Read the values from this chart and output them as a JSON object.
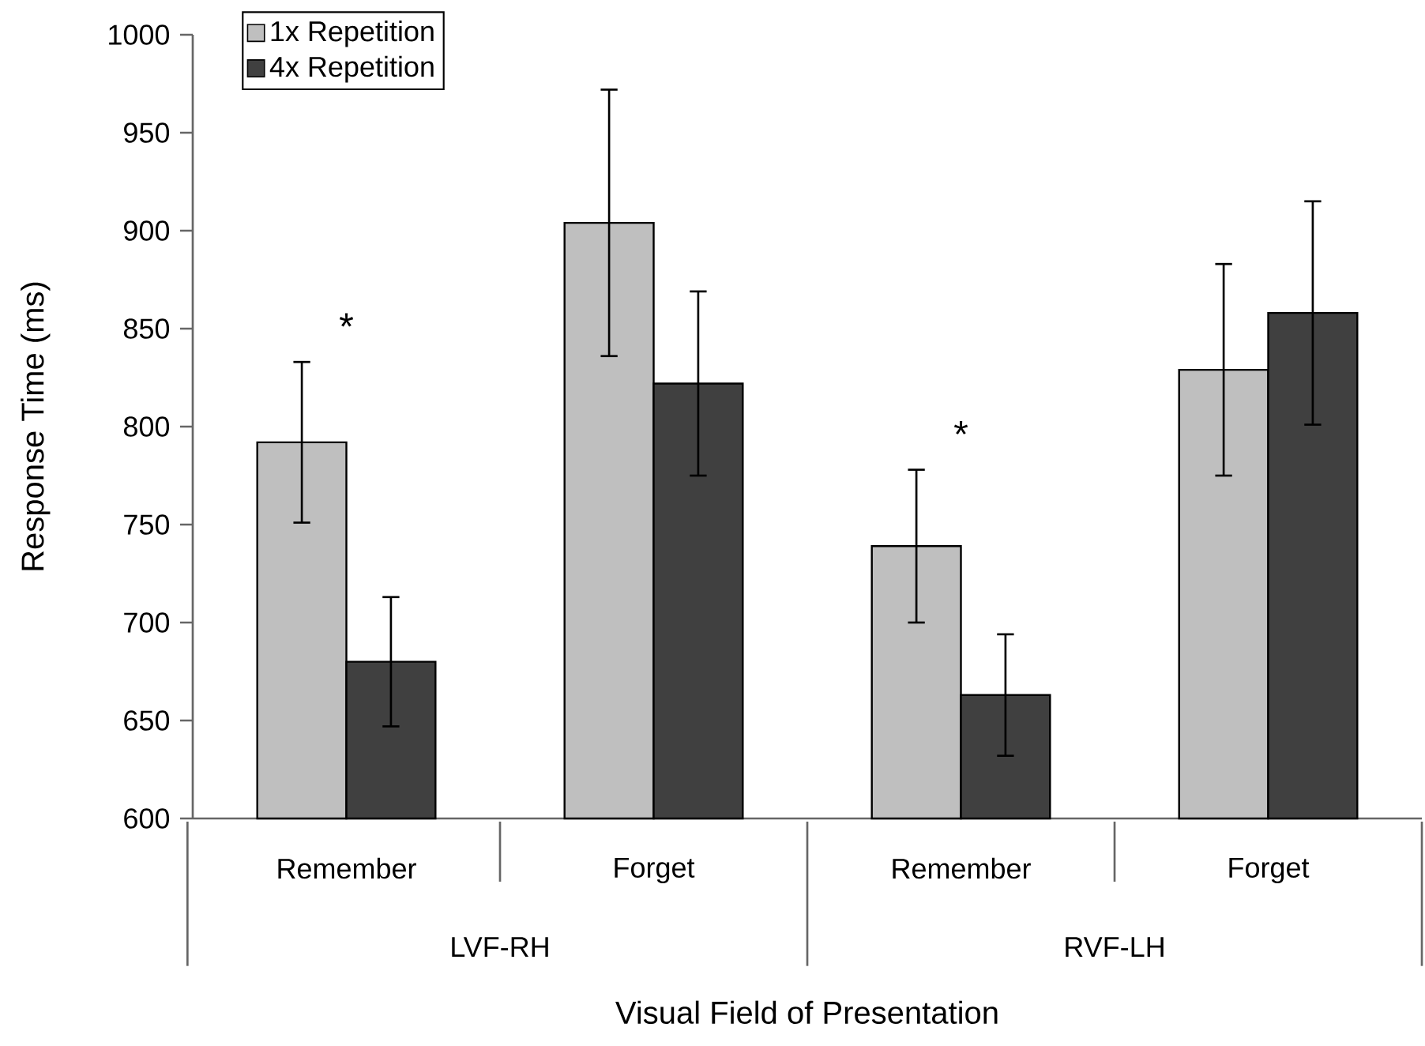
{
  "chart_data": {
    "type": "bar",
    "ylabel": "Response Time (ms)",
    "xlabel": "Visual Field of Presentation",
    "categories": [
      "Remember",
      "Forget",
      "Remember",
      "Forget"
    ],
    "series": [
      {
        "name": "1x Repetition",
        "color": "#bfbfbf",
        "values": [
          792,
          904,
          739,
          829
        ],
        "errors": [
          41,
          68,
          39,
          54
        ]
      },
      {
        "name": "4x Repetition",
        "color": "#404040",
        "values": [
          680,
          822,
          663,
          858
        ],
        "errors": [
          33,
          47,
          31,
          57
        ]
      }
    ],
    "annotations": [
      "*",
      "*",
      "LVF-RH",
      "RVF-LH"
    ],
    "ylim": [
      600,
      1000
    ],
    "yticks": [
      600,
      650,
      700,
      750,
      800,
      850,
      900,
      950,
      1000
    ],
    "legend": "top left",
    "grid": false
  }
}
